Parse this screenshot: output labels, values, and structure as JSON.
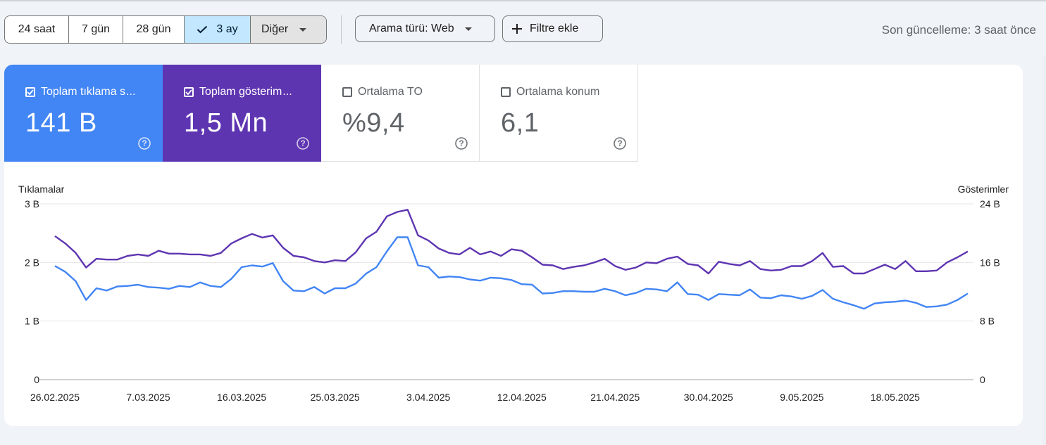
{
  "toolbar": {
    "ranges": [
      "24 saat",
      "7 gün",
      "28 gün",
      "3 ay"
    ],
    "selected_range": "3 ay",
    "more_label": "Diğer",
    "search_type_label": "Arama türü: Web",
    "filter_label": "Filtre ekle",
    "last_updated": "Son güncelleme: 3 saat önce"
  },
  "metrics": [
    {
      "label": "Toplam tıklama s",
      "ellipsis": "...",
      "value": "141 B",
      "checked": true,
      "color": "#4285f4"
    },
    {
      "label": "Toplam gösterim",
      "ellipsis": "...",
      "value": "1,5 Mn",
      "checked": true,
      "color": "#5e35b1"
    },
    {
      "label": "Ortalama TO",
      "ellipsis": "",
      "value": "%9,4",
      "checked": false,
      "color": "#ffffff"
    },
    {
      "label": "Ortalama konum",
      "ellipsis": "",
      "value": "6,1",
      "checked": false,
      "color": "#ffffff"
    }
  ],
  "chart_data": {
    "type": "line",
    "left_axis_title": "Tıklamalar",
    "right_axis_title": "Gösterimler",
    "left_ticks": [
      "0",
      "1 B",
      "2 B",
      "3 B"
    ],
    "right_ticks": [
      "0",
      "8 B",
      "16 B",
      "24 B"
    ],
    "left_range": [
      0,
      3000
    ],
    "right_range": [
      0,
      24000
    ],
    "x_tick_labels": [
      "26.02.2025",
      "7.03.2025",
      "16.03.2025",
      "25.03.2025",
      "3.04.2025",
      "12.04.2025",
      "21.04.2025",
      "30.04.2025",
      "9.05.2025",
      "18.05.2025"
    ],
    "x_tick_indices": [
      0,
      9,
      18,
      27,
      36,
      45,
      54,
      63,
      72,
      81
    ],
    "grid": true,
    "series": [
      {
        "name": "Tıklamalar",
        "axis": "left",
        "color": "#4285f4",
        "values": [
          1940,
          1840,
          1680,
          1360,
          1560,
          1520,
          1590,
          1600,
          1620,
          1580,
          1570,
          1550,
          1600,
          1580,
          1660,
          1600,
          1580,
          1720,
          1920,
          1950,
          1930,
          1990,
          1680,
          1520,
          1510,
          1580,
          1470,
          1560,
          1560,
          1640,
          1810,
          1920,
          2190,
          2430,
          2430,
          1950,
          1920,
          1740,
          1760,
          1750,
          1710,
          1690,
          1740,
          1730,
          1700,
          1630,
          1620,
          1470,
          1480,
          1510,
          1510,
          1500,
          1500,
          1550,
          1510,
          1440,
          1480,
          1550,
          1540,
          1510,
          1660,
          1460,
          1450,
          1360,
          1460,
          1450,
          1440,
          1540,
          1400,
          1390,
          1440,
          1420,
          1380,
          1430,
          1530,
          1380,
          1320,
          1270,
          1210,
          1300,
          1320,
          1330,
          1350,
          1310,
          1240,
          1250,
          1280,
          1360,
          1470
        ]
      },
      {
        "name": "Gösterimler",
        "axis": "right",
        "color": "#5e35b1",
        "values": [
          19600,
          18600,
          17300,
          15300,
          16500,
          16400,
          16400,
          16900,
          17100,
          16900,
          17600,
          17200,
          17200,
          17100,
          17100,
          16900,
          17300,
          18600,
          19300,
          19900,
          19400,
          19700,
          18000,
          16900,
          16700,
          16200,
          16000,
          16300,
          16200,
          17400,
          19300,
          20200,
          22300,
          22900,
          23200,
          19700,
          19000,
          17900,
          17300,
          17100,
          18000,
          17100,
          17500,
          16900,
          17800,
          17600,
          16700,
          15700,
          15600,
          15100,
          15400,
          15600,
          16000,
          16500,
          15500,
          15000,
          15300,
          16000,
          15900,
          16500,
          16800,
          15800,
          15600,
          14500,
          16100,
          15800,
          15600,
          16200,
          15100,
          14900,
          15000,
          15500,
          15500,
          16200,
          17300,
          15400,
          15500,
          14500,
          14500,
          15100,
          15700,
          15100,
          16200,
          14800,
          14800,
          14900,
          16000,
          16700,
          17500
        ]
      }
    ]
  }
}
